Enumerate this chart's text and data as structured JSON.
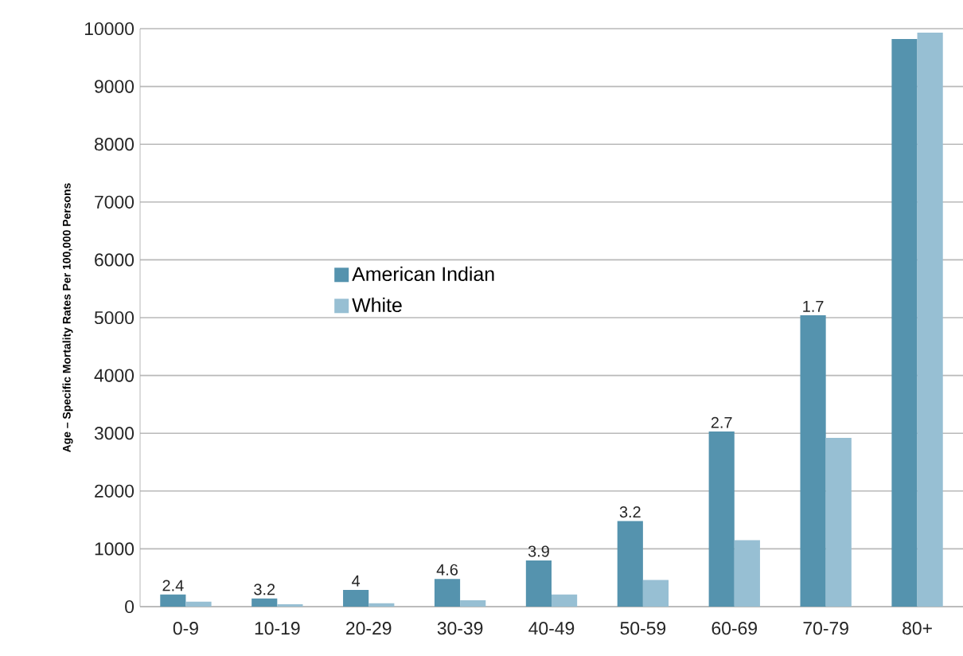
{
  "chart_data": {
    "type": "bar",
    "ylabel": "Age – Specific Mortality Rates Per 100,000 Persons",
    "categories": [
      "0-9",
      "10-19",
      "20-29",
      "30-39",
      "40-49",
      "50-59",
      "60-69",
      "70-79",
      "80+"
    ],
    "series": [
      {
        "name": "American Indian",
        "color": "#5593ae",
        "values": [
          210,
          140,
          290,
          480,
          800,
          1480,
          3030,
          5040,
          9820
        ]
      },
      {
        "name": "White",
        "color": "#97bfd3",
        "values": [
          85,
          40,
          60,
          110,
          210,
          460,
          1150,
          2920,
          9930
        ]
      }
    ],
    "annotations": [
      {
        "text": "2.4",
        "x": "0-9",
        "y": 210
      },
      {
        "text": "3.2",
        "x": "10-19",
        "y": 140
      },
      {
        "text": "4",
        "x": "20-29",
        "y": 290
      },
      {
        "text": "4.6",
        "x": "30-39",
        "y": 480
      },
      {
        "text": "3.9",
        "x": "40-49",
        "y": 800
      },
      {
        "text": "3.2",
        "x": "50-59",
        "y": 1480
      },
      {
        "text": "2.7",
        "x": "60-69",
        "y": 3030
      },
      {
        "text": "1.7",
        "x": "70-79",
        "y": 5040
      }
    ],
    "ylim": [
      0,
      10000
    ],
    "yticks": [
      0,
      1000,
      2000,
      3000,
      4000,
      5000,
      6000,
      7000,
      8000,
      9000,
      10000
    ],
    "grid": "y",
    "legend": "left"
  }
}
